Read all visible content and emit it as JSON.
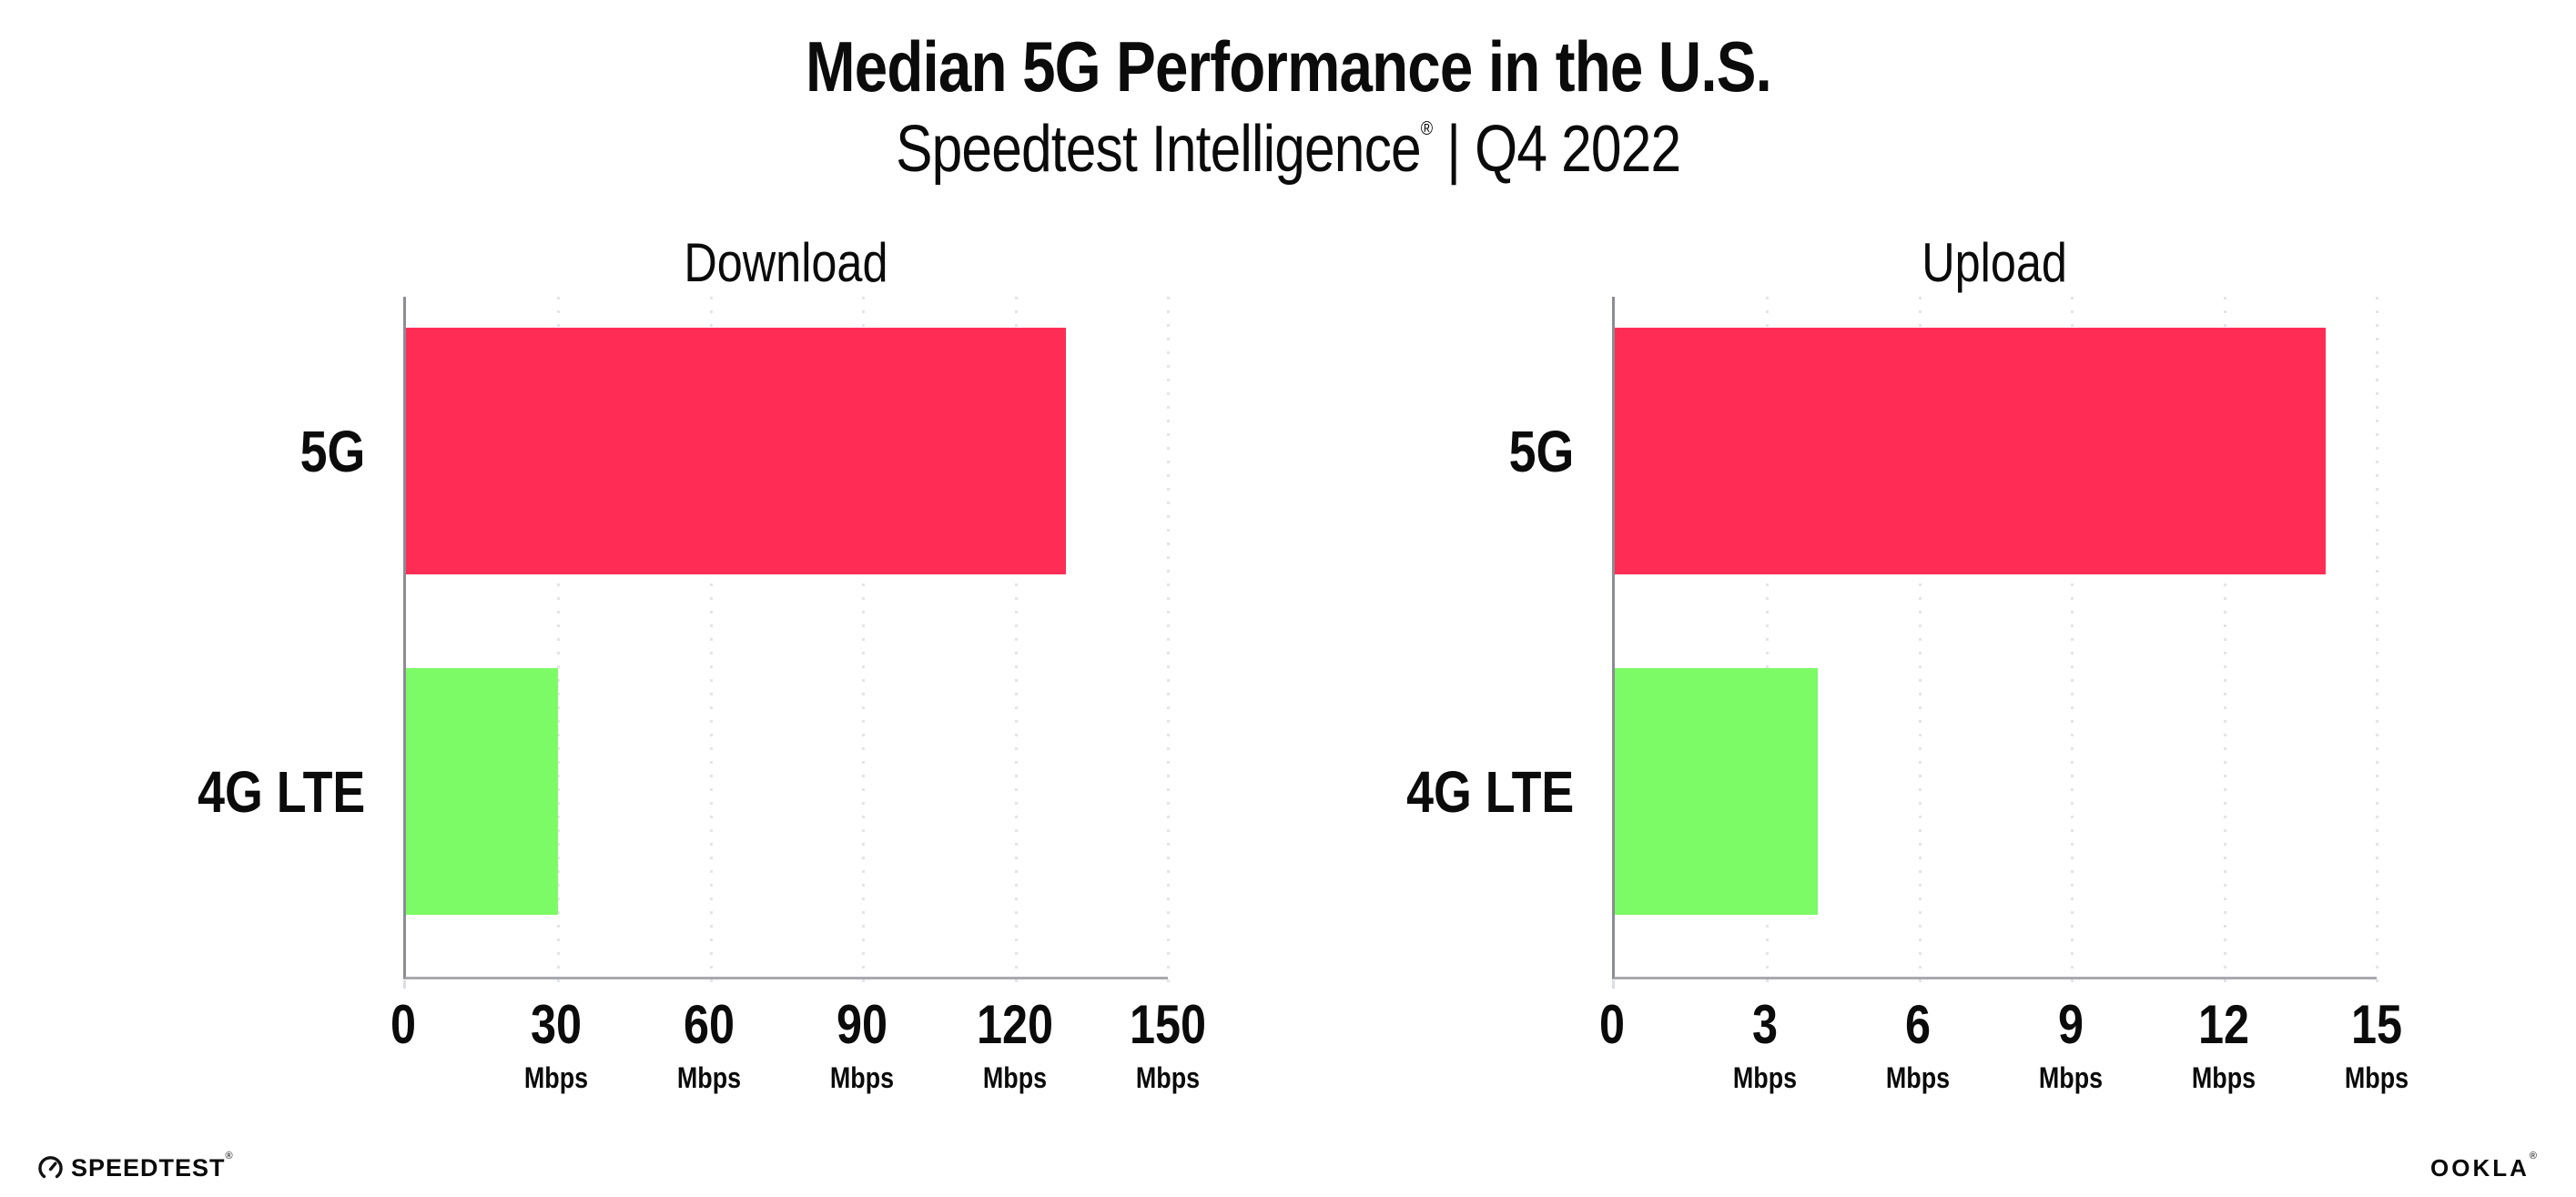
{
  "header": {
    "title": "Median 5G Performance in the U.S.",
    "subtitle_brand": "Speedtest Intelligence",
    "registered_mark": "®",
    "subtitle_rest": " | Q4 2022"
  },
  "chart_data": [
    {
      "type": "bar",
      "orientation": "horizontal",
      "title": "Download",
      "categories": [
        "5G",
        "4G LTE"
      ],
      "values": [
        130,
        30
      ],
      "unit": "Mbps",
      "xlabel": "",
      "ylabel": "",
      "xlim": [
        0,
        150
      ],
      "xticks": [
        0,
        30,
        60,
        90,
        120,
        150
      ],
      "bar_colors": [
        "#FF2D55",
        "#7DFB66"
      ],
      "grid": "vertical-dotted",
      "legend": "none"
    },
    {
      "type": "bar",
      "orientation": "horizontal",
      "title": "Upload",
      "categories": [
        "5G",
        "4G LTE"
      ],
      "values": [
        14,
        4
      ],
      "unit": "Mbps",
      "xlabel": "",
      "ylabel": "",
      "xlim": [
        0,
        15
      ],
      "xticks": [
        0,
        3,
        6,
        9,
        12,
        15
      ],
      "bar_colors": [
        "#FF2D55",
        "#7DFB66"
      ],
      "grid": "vertical-dotted",
      "legend": "none"
    }
  ],
  "footer": {
    "speedtest_label": "SPEEDTEST",
    "speedtest_mark": "®",
    "speedtest_icon": "speedtest-gauge-icon",
    "ookla_label": "OOKLA",
    "ookla_mark": "®"
  },
  "colors": {
    "bar_5g": "#FF2D55",
    "bar_4g": "#7DFB66",
    "axis_y": "#8C8C94",
    "axis_x": "#A8A8AF",
    "gridline": "#E3E3EC",
    "text": "#0B0B0C",
    "background": "#FFFFFF"
  }
}
